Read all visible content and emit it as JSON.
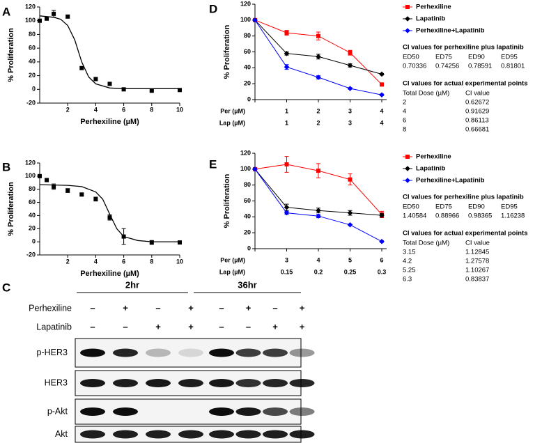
{
  "chart_data": [
    {
      "type": "scatter",
      "panel_label": "A",
      "xlabel": "Perhexiline (µM)",
      "ylabel": "% Proliferation",
      "x": [
        0,
        0.5,
        1,
        2,
        3,
        4,
        5,
        6,
        8,
        10
      ],
      "values": [
        100,
        103,
        110,
        106,
        31,
        15,
        8,
        0,
        -2,
        -1
      ],
      "errors": [
        2,
        2,
        5,
        2,
        2,
        2,
        1,
        1,
        1,
        1
      ],
      "fit": {
        "x": [
          0,
          1,
          1.5,
          2,
          2.5,
          3,
          3.5,
          4,
          5,
          6,
          8,
          10
        ],
        "values": [
          107,
          105,
          102,
          93,
          72,
          40,
          18,
          8,
          2,
          1,
          1,
          1
        ]
      },
      "color": "#000000",
      "xlim": [
        0,
        10
      ],
      "ylim": [
        -20,
        120
      ],
      "xticks": [
        2,
        4,
        6,
        8,
        10
      ],
      "yticks": [
        -20,
        0,
        20,
        40,
        60,
        80,
        100,
        120
      ]
    },
    {
      "type": "scatter",
      "panel_label": "B",
      "xlabel": "Perhexiline (µM)",
      "ylabel": "% Proliferation",
      "x": [
        0,
        0.5,
        1,
        2,
        3,
        4,
        5,
        6,
        8,
        10
      ],
      "values": [
        100,
        94,
        84,
        78,
        72,
        65,
        37,
        8,
        -1,
        -1
      ],
      "errors": [
        1,
        2,
        4,
        3,
        2,
        3,
        4,
        12,
        3,
        1
      ],
      "fit": {
        "x": [
          0,
          2,
          3,
          4,
          4.5,
          5,
          5.5,
          6,
          7,
          8,
          10
        ],
        "values": [
          87,
          86,
          84,
          76,
          65,
          42,
          20,
          8,
          2,
          0,
          0
        ]
      },
      "color": "#000000",
      "xlim": [
        0,
        10
      ],
      "ylim": [
        -20,
        120
      ],
      "xticks": [
        2,
        4,
        6,
        8,
        10
      ],
      "yticks": [
        -20,
        0,
        20,
        40,
        60,
        80,
        100,
        120
      ]
    },
    {
      "type": "line",
      "panel_label": "D",
      "ylabel": "% Proliferation",
      "category_row_labels": [
        "Per (µM)",
        "Lap (µM)"
      ],
      "categories": [
        null,
        "1",
        "2",
        "3",
        "4"
      ],
      "categories2": [
        null,
        "1",
        "2",
        "3",
        "4"
      ],
      "series": [
        {
          "name": "Perhexiline",
          "color": "#ff0000",
          "marker": "square",
          "values": [
            100,
            84,
            80,
            59,
            19
          ],
          "errors": [
            0,
            3,
            5,
            3,
            2
          ]
        },
        {
          "name": "Lapatinib",
          "color": "#000000",
          "marker": "diamond",
          "values": [
            100,
            58,
            54,
            43,
            32
          ],
          "errors": [
            0,
            2,
            3,
            2,
            1
          ]
        },
        {
          "name": "Perhexiline+Lapatinib",
          "color": "#0000ff",
          "marker": "diamond",
          "values": [
            100,
            41,
            28,
            14,
            6
          ],
          "errors": [
            0,
            3,
            2,
            1,
            1
          ]
        }
      ],
      "legend": "right",
      "ylim": [
        0,
        120
      ],
      "yticks": [
        0,
        20,
        40,
        60,
        80,
        100,
        120
      ],
      "ci_tables": [
        {
          "title": "CI values for perhexiline plus lapatinib",
          "headers": [
            "ED50",
            "ED75",
            "ED90",
            "ED95"
          ],
          "rows": [
            [
              "0.70336",
              "0.74256",
              "0.78591",
              "0.81801"
            ]
          ]
        },
        {
          "title": "CI values for actual experimental points",
          "headers": [
            "Total Dose (µM)",
            "CI value"
          ],
          "rows": [
            [
              "2",
              "0.62672"
            ],
            [
              "4",
              "0.91629"
            ],
            [
              "6",
              "0.86113"
            ],
            [
              "8",
              "0.66681"
            ]
          ]
        }
      ]
    },
    {
      "type": "line",
      "panel_label": "E",
      "ylabel": "% Proliferation",
      "category_row_labels": [
        "Per (µM)",
        "Lap (µM)"
      ],
      "categories": [
        null,
        "3",
        "4",
        "5",
        "6"
      ],
      "categories2": [
        null,
        "0.15",
        "0.2",
        "0.25",
        "0.3"
      ],
      "series": [
        {
          "name": "Perhexiline",
          "color": "#ff0000",
          "marker": "square",
          "values": [
            100,
            106,
            98,
            87,
            43
          ],
          "errors": [
            0,
            10,
            9,
            7,
            4
          ]
        },
        {
          "name": "Lapatinib",
          "color": "#000000",
          "marker": "diamond",
          "values": [
            100,
            52,
            48,
            45,
            42
          ],
          "errors": [
            0,
            4,
            3,
            3,
            2
          ]
        },
        {
          "name": "Perhexiline+Lapatinib",
          "color": "#0000ff",
          "marker": "diamond",
          "values": [
            100,
            45,
            41,
            30,
            9
          ],
          "errors": [
            0,
            2,
            2,
            1,
            1
          ]
        }
      ],
      "legend": "right",
      "ylim": [
        0,
        120
      ],
      "yticks": [
        0,
        20,
        40,
        60,
        80,
        100,
        120
      ],
      "ci_tables": [
        {
          "title": "CI values for perhexiline plus lapatinib",
          "headers": [
            "ED50",
            "ED75",
            "ED90",
            "ED95"
          ],
          "rows": [
            [
              "1.40584",
              "0.88966",
              "0.98365",
              "1.16238"
            ]
          ]
        },
        {
          "title": "CI values for actual experimental points",
          "headers": [
            "Total Dose (µM)",
            "CI value"
          ],
          "rows": [
            [
              "3.15",
              "1.12845"
            ],
            [
              "4.2",
              "1.27578"
            ],
            [
              "5.25",
              "1.10267"
            ],
            [
              "6.3",
              "0.83837"
            ]
          ]
        }
      ]
    }
  ],
  "blot": {
    "panel_label": "C",
    "time_points": [
      "2hr",
      "36hr"
    ],
    "treatments": [
      {
        "name": "Perhexiline",
        "signs": [
          "–",
          "+",
          "–",
          "+",
          "–",
          "+",
          "–",
          "+"
        ]
      },
      {
        "name": "Lapatinib",
        "signs": [
          "–",
          "–",
          "+",
          "+",
          "–",
          "–",
          "+",
          "+"
        ]
      }
    ],
    "proteins": [
      "p-HER3",
      "HER3",
      "p-Akt",
      "Akt"
    ]
  }
}
